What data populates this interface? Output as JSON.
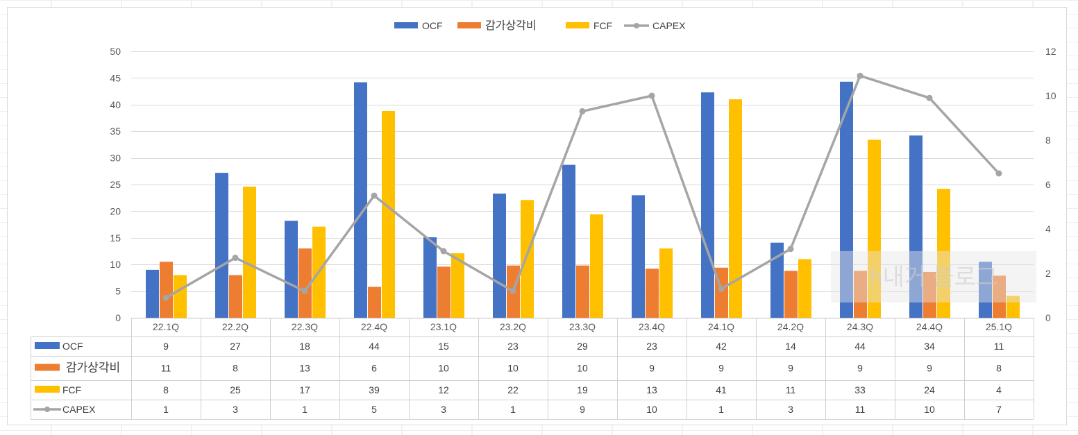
{
  "colors": {
    "ocf": "#4472C4",
    "depreciation": "#ED7D31",
    "fcf": "#FFC000",
    "capex": "#A5A5A5",
    "gridline": "#D9D9D9",
    "axis_text": "#595959"
  },
  "watermark": "h내거 블로그",
  "chart_data": {
    "type": "bar",
    "categories": [
      "22.1Q",
      "22.2Q",
      "22.3Q",
      "22.4Q",
      "23.1Q",
      "23.2Q",
      "23.3Q",
      "23.4Q",
      "24.1Q",
      "24.2Q",
      "24.3Q",
      "24.4Q",
      "25.1Q"
    ],
    "series": [
      {
        "name": "OCF",
        "type": "bar",
        "axis": "left",
        "color": "#4472C4",
        "values": [
          9.0,
          27.2,
          18.2,
          44.2,
          15.1,
          23.3,
          28.7,
          23.0,
          42.3,
          14.1,
          44.3,
          34.2,
          10.5
        ],
        "table_values": [
          "9",
          "27",
          "18",
          "44",
          "15",
          "23",
          "29",
          "23",
          "42",
          "14",
          "44",
          "34",
          "11"
        ]
      },
      {
        "name": "감가상각비",
        "type": "bar",
        "axis": "left",
        "color": "#ED7D31",
        "values": [
          10.5,
          8.0,
          13.0,
          5.8,
          9.6,
          9.8,
          9.8,
          9.2,
          9.4,
          8.8,
          8.8,
          8.6,
          7.9
        ],
        "table_values": [
          "11",
          "8",
          "13",
          "6",
          "10",
          "10",
          "10",
          "9",
          "9",
          "9",
          "9",
          "9",
          "8"
        ]
      },
      {
        "name": "FCF",
        "type": "bar",
        "axis": "left",
        "color": "#FFC000",
        "values": [
          8.0,
          24.6,
          17.1,
          38.8,
          12.1,
          22.1,
          19.4,
          13.0,
          41.0,
          11.0,
          33.4,
          24.2,
          4.1
        ],
        "table_values": [
          "8",
          "25",
          "17",
          "39",
          "12",
          "22",
          "19",
          "13",
          "41",
          "11",
          "33",
          "24",
          "4"
        ]
      },
      {
        "name": "CAPEX",
        "type": "line",
        "axis": "right",
        "color": "#A5A5A5",
        "values": [
          0.9,
          2.7,
          1.2,
          5.5,
          3.0,
          1.2,
          9.3,
          10.0,
          1.3,
          3.1,
          10.9,
          9.9,
          6.5
        ],
        "table_values": [
          "1",
          "3",
          "1",
          "5",
          "3",
          "1",
          "9",
          "10",
          "1",
          "3",
          "11",
          "10",
          "7"
        ]
      }
    ],
    "y_left": {
      "min": 0,
      "max": 50,
      "ticks": [
        "0",
        "5",
        "10",
        "15",
        "20",
        "25",
        "30",
        "35",
        "40",
        "45",
        "50"
      ]
    },
    "y_right": {
      "min": 0,
      "max": 12,
      "ticks": [
        "0",
        "2",
        "4",
        "6",
        "8",
        "10",
        "12"
      ]
    },
    "legend_position": "top",
    "gridlines": true,
    "data_table": true
  }
}
